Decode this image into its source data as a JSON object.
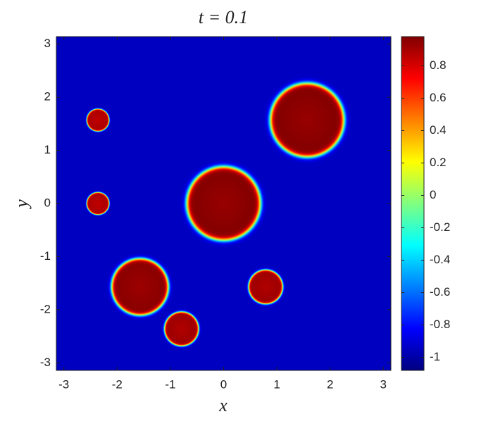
{
  "chart_data": {
    "type": "heatmap",
    "title": "t = 0.1",
    "x_label": "x",
    "y_label": "y",
    "xlim": [
      -3.1416,
      3.1416
    ],
    "ylim": [
      -3.1416,
      3.1416
    ],
    "xticks": [
      -3,
      -2,
      -1,
      0,
      1,
      2,
      3
    ],
    "yticks": [
      -3,
      -2,
      -1,
      0,
      1,
      2,
      3
    ],
    "background": -0.95,
    "circles": [
      {
        "x": -2.36,
        "y": 1.57,
        "r": 0.21,
        "value": 0.9
      },
      {
        "x": -2.36,
        "y": 0,
        "r": 0.21,
        "value": 0.9
      },
      {
        "x": 0,
        "y": 0,
        "r": 0.69,
        "value": 0.98
      },
      {
        "x": 1.57,
        "y": 1.57,
        "r": 0.69,
        "value": 0.98
      },
      {
        "x": -1.57,
        "y": -1.57,
        "r": 0.53,
        "value": 0.97
      },
      {
        "x": 0.79,
        "y": -1.57,
        "r": 0.32,
        "value": 0.93
      },
      {
        "x": -0.79,
        "y": -2.36,
        "r": 0.32,
        "value": 0.93
      }
    ],
    "colormap": "jet",
    "clim": [
      -1.08,
      0.98
    ],
    "cticks": [
      -1,
      -0.8,
      -0.6,
      -0.4,
      -0.2,
      0,
      0.2,
      0.4,
      0.6,
      0.8
    ]
  }
}
